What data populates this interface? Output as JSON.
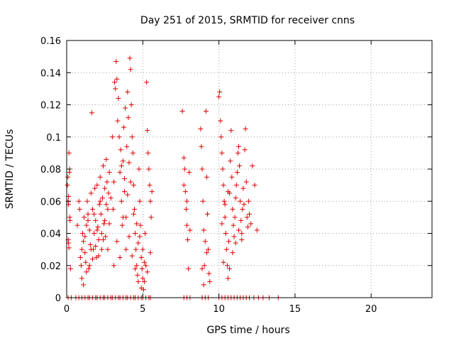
{
  "chart_data": {
    "type": "scatter",
    "title": "Day 251 of 2015, SRMTID for receiver cnns",
    "xlabel": "GPS time / hours",
    "ylabel": "SRMTID / TECUs",
    "xlim": [
      0,
      24
    ],
    "ylim": [
      0,
      0.16
    ],
    "xticks": [
      0,
      5,
      10,
      15,
      20
    ],
    "xtick_labels": [
      "0",
      "5",
      "10",
      "15",
      "20"
    ],
    "yticks": [
      0,
      0.02,
      0.04,
      0.06,
      0.08,
      0.1,
      0.12,
      0.14,
      0.16
    ],
    "ytick_labels": [
      "0",
      "0.02",
      "0.04",
      "0.06",
      "0.08",
      "0.1",
      "0.12",
      "0.14",
      "0.16"
    ],
    "grid": true,
    "marker": "plus",
    "color": "#e00000",
    "series": [
      {
        "name": "SRMTID",
        "points": [
          [
            0.05,
            0.07
          ],
          [
            0.08,
            0.075
          ],
          [
            0.1,
            0.06
          ],
          [
            0.12,
            0.058
          ],
          [
            0.15,
            0.09
          ],
          [
            0.18,
            0.078
          ],
          [
            0.1,
            0.036
          ],
          [
            0.12,
            0.034
          ],
          [
            0.15,
            0.031
          ],
          [
            0.2,
            0.05
          ],
          [
            0.22,
            0.048
          ],
          [
            0.25,
            0.018
          ],
          [
            0.12,
            0.063
          ],
          [
            0.2,
            0.08
          ],
          [
            0.7,
            0.045
          ],
          [
            0.8,
            0.06
          ],
          [
            0.85,
            0.055
          ],
          [
            0.9,
            0.025
          ],
          [
            0.95,
            0.02
          ],
          [
            1.0,
            0.03
          ],
          [
            1.05,
            0.04
          ],
          [
            1.1,
            0.035
          ],
          [
            1.15,
            0.05
          ],
          [
            1.2,
            0.028
          ],
          [
            1.25,
            0.022
          ],
          [
            1.3,
            0.045
          ],
          [
            1.35,
            0.06
          ],
          [
            1.4,
            0.052
          ],
          [
            1.45,
            0.018
          ],
          [
            1.5,
            0.042
          ],
          [
            1.55,
            0.033
          ],
          [
            1.6,
            0.065
          ],
          [
            1.65,
            0.115
          ],
          [
            1.7,
            0.055
          ],
          [
            1.75,
            0.03
          ],
          [
            1.8,
            0.04
          ],
          [
            1.85,
            0.068
          ],
          [
            1.9,
            0.048
          ],
          [
            1.95,
            0.025
          ],
          [
            2.0,
            0.07
          ],
          [
            2.05,
            0.044
          ],
          [
            2.1,
            0.036
          ],
          [
            2.15,
            0.058
          ],
          [
            2.2,
            0.075
          ],
          [
            2.25,
            0.052
          ],
          [
            2.3,
            0.03
          ],
          [
            2.35,
            0.062
          ],
          [
            2.4,
            0.082
          ],
          [
            2.45,
            0.046
          ],
          [
            2.5,
            0.068
          ],
          [
            2.55,
            0.038
          ],
          [
            2.6,
            0.086
          ],
          [
            2.65,
            0.072
          ],
          [
            2.7,
            0.055
          ],
          [
            2.75,
            0.065
          ],
          [
            2.8,
            0.078
          ],
          [
            1.0,
            0.012
          ],
          [
            1.1,
            0.008
          ],
          [
            1.3,
            0.016
          ],
          [
            1.5,
            0.02
          ],
          [
            1.7,
            0.024
          ],
          [
            1.9,
            0.032
          ],
          [
            2.1,
            0.026
          ],
          [
            2.3,
            0.04
          ],
          [
            2.5,
            0.048
          ],
          [
            2.7,
            0.03
          ],
          [
            2.9,
            0.062
          ],
          [
            3.0,
            0.1
          ],
          [
            3.05,
            0.055
          ],
          [
            3.1,
            0.072
          ],
          [
            3.15,
            0.134
          ],
          [
            3.2,
            0.13
          ],
          [
            3.25,
            0.147
          ],
          [
            3.3,
            0.136
          ],
          [
            3.35,
            0.11
          ],
          [
            3.4,
            0.124
          ],
          [
            3.45,
            0.1
          ],
          [
            3.5,
            0.078
          ],
          [
            3.55,
            0.092
          ],
          [
            3.6,
            0.06
          ],
          [
            3.65,
            0.045
          ],
          [
            3.7,
            0.085
          ],
          [
            3.75,
            0.106
          ],
          [
            3.8,
            0.066
          ],
          [
            3.85,
            0.118
          ],
          [
            3.9,
            0.05
          ],
          [
            3.95,
            0.094
          ],
          [
            4.0,
            0.128
          ],
          [
            4.05,
            0.112
          ],
          [
            4.1,
            0.084
          ],
          [
            4.15,
            0.149
          ],
          [
            4.2,
            0.142
          ],
          [
            4.25,
            0.12
          ],
          [
            4.3,
            0.1
          ],
          [
            4.35,
            0.09
          ],
          [
            4.4,
            0.07
          ],
          [
            4.45,
            0.055
          ],
          [
            4.5,
            0.04
          ],
          [
            4.55,
            0.03
          ],
          [
            4.6,
            0.02
          ],
          [
            4.65,
            0.014
          ],
          [
            4.7,
            0.01
          ],
          [
            4.75,
            0.08
          ],
          [
            4.8,
            0.06
          ],
          [
            4.85,
            0.045
          ],
          [
            4.9,
            0.025
          ],
          [
            4.95,
            0.018
          ],
          [
            5.0,
            0.03
          ],
          [
            5.05,
            0.005
          ],
          [
            5.1,
            0.01
          ],
          [
            5.15,
            0.04
          ],
          [
            5.2,
            0.02
          ],
          [
            5.25,
            0.134
          ],
          [
            5.3,
            0.104
          ],
          [
            5.35,
            0.09
          ],
          [
            5.4,
            0.08
          ],
          [
            5.45,
            0.07
          ],
          [
            5.5,
            0.06
          ],
          [
            5.55,
            0.05
          ],
          [
            5.6,
            0.066
          ],
          [
            3.1,
            0.02
          ],
          [
            3.3,
            0.035
          ],
          [
            3.5,
            0.025
          ],
          [
            3.7,
            0.05
          ],
          [
            3.9,
            0.03
          ],
          [
            4.1,
            0.038
          ],
          [
            4.3,
            0.026
          ],
          [
            4.5,
            0.018
          ],
          [
            4.7,
            0.034
          ],
          [
            4.9,
            0.006
          ],
          [
            5.0,
            0.012
          ],
          [
            5.1,
            0.022
          ],
          [
            5.3,
            0.016
          ],
          [
            5.5,
            0.028
          ],
          [
            2.2,
            0.06
          ],
          [
            2.6,
            0.058
          ],
          [
            2.8,
            0.046
          ],
          [
            3.6,
            0.082
          ],
          [
            3.8,
            0.074
          ],
          [
            4.0,
            0.064
          ],
          [
            4.2,
            0.072
          ],
          [
            4.4,
            0.052
          ],
          [
            4.6,
            0.046
          ],
          [
            4.8,
            0.038
          ],
          [
            1.2,
            0.038
          ],
          [
            1.4,
            0.048
          ],
          [
            1.6,
            0.03
          ],
          [
            1.8,
            0.052
          ],
          [
            2.0,
            0.042
          ],
          [
            2.4,
            0.036
          ],
          [
            7.6,
            0.116
          ],
          [
            7.7,
            0.087
          ],
          [
            7.75,
            0.08
          ],
          [
            7.8,
            0.066
          ],
          [
            7.85,
            0.055
          ],
          [
            7.9,
            0.045
          ],
          [
            7.95,
            0.036
          ],
          [
            8.0,
            0.018
          ],
          [
            8.05,
            0.078
          ],
          [
            8.1,
            0.042
          ],
          [
            7.7,
            0.07
          ],
          [
            7.9,
            0.06
          ],
          [
            8.8,
            0.105
          ],
          [
            8.85,
            0.094
          ],
          [
            8.9,
            0.08
          ],
          [
            8.95,
            0.06
          ],
          [
            9.0,
            0.042
          ],
          [
            9.05,
            0.02
          ],
          [
            9.1,
            0.035
          ],
          [
            9.15,
            0.116
          ],
          [
            9.2,
            0.075
          ],
          [
            9.25,
            0.052
          ],
          [
            9.3,
            0.03
          ],
          [
            9.35,
            0.015
          ],
          [
            9.4,
            0.01
          ],
          [
            9.0,
            0.008
          ],
          [
            8.9,
            0.018
          ],
          [
            9.2,
            0.028
          ],
          [
            10.0,
            0.125
          ],
          [
            10.05,
            0.128
          ],
          [
            10.1,
            0.11
          ],
          [
            10.15,
            0.1
          ],
          [
            10.2,
            0.09
          ],
          [
            10.25,
            0.08
          ],
          [
            10.3,
            0.07
          ],
          [
            10.35,
            0.06
          ],
          [
            10.4,
            0.05
          ],
          [
            10.45,
            0.04
          ],
          [
            10.5,
            0.03
          ],
          [
            10.55,
            0.02
          ],
          [
            10.6,
            0.012
          ],
          [
            10.65,
            0.035
          ],
          [
            10.7,
            0.065
          ],
          [
            10.75,
            0.085
          ],
          [
            10.8,
            0.104
          ],
          [
            10.85,
            0.075
          ],
          [
            10.9,
            0.055
          ],
          [
            10.95,
            0.045
          ],
          [
            11.0,
            0.038
          ],
          [
            11.05,
            0.05
          ],
          [
            11.1,
            0.062
          ],
          [
            11.15,
            0.07
          ],
          [
            11.2,
            0.078
          ],
          [
            11.25,
            0.09
          ],
          [
            11.3,
            0.094
          ],
          [
            11.35,
            0.082
          ],
          [
            11.4,
            0.06
          ],
          [
            11.45,
            0.048
          ],
          [
            11.5,
            0.04
          ],
          [
            11.55,
            0.055
          ],
          [
            11.6,
            0.068
          ],
          [
            11.65,
            0.058
          ],
          [
            11.7,
            0.092
          ],
          [
            11.75,
            0.105
          ],
          [
            11.8,
            0.072
          ],
          [
            11.85,
            0.05
          ],
          [
            11.9,
            0.044
          ],
          [
            11.95,
            0.06
          ],
          [
            12.0,
            0.052
          ],
          [
            12.1,
            0.046
          ],
          [
            12.2,
            0.082
          ],
          [
            12.35,
            0.07
          ],
          [
            12.5,
            0.042
          ],
          [
            10.3,
            0.022
          ],
          [
            10.7,
            0.018
          ],
          [
            10.9,
            0.028
          ],
          [
            11.1,
            0.034
          ],
          [
            11.3,
            0.042
          ],
          [
            11.5,
            0.036
          ],
          [
            10.2,
            0.046
          ],
          [
            10.4,
            0.058
          ],
          [
            10.6,
            0.066
          ]
        ],
        "zero_points_x": [
          0.1,
          0.3,
          0.6,
          0.8,
          1.0,
          1.2,
          1.4,
          1.5,
          1.7,
          1.9,
          2.0,
          2.2,
          2.4,
          2.5,
          2.7,
          2.9,
          3.0,
          3.2,
          3.4,
          3.5,
          3.7,
          3.9,
          4.0,
          4.2,
          4.4,
          4.5,
          4.7,
          4.9,
          5.0,
          5.2,
          5.4,
          5.5,
          7.7,
          7.9,
          8.1,
          8.9,
          9.1,
          9.3,
          10.0,
          10.2,
          10.4,
          10.6,
          10.8,
          11.0,
          11.2,
          11.4,
          11.6,
          11.8,
          12.0,
          12.3,
          12.6,
          12.9,
          13.3,
          13.9
        ]
      }
    ]
  }
}
